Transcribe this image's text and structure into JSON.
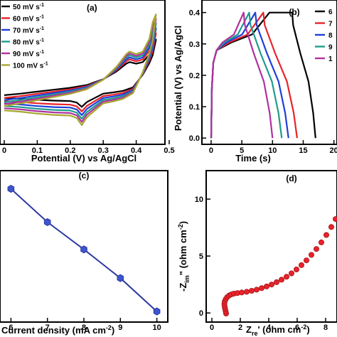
{
  "chart_data": [
    {
      "type": "line",
      "panel_label": "(a)",
      "xlabel": "Potential (V) vs Ag/AgCl",
      "ylabel": "",
      "xlim": [
        0.0,
        0.5
      ],
      "ylim": [
        -1.05,
        1.25
      ],
      "x_ticks": [
        "0",
        "0.1",
        "0.2",
        "0.3",
        "0.4",
        "0.5"
      ],
      "x_tick_values": [
        0.0,
        0.1,
        0.2,
        0.3,
        0.4,
        0.5
      ],
      "legend_position": "top-left",
      "series": [
        {
          "name": "50 mV s",
          "superscript": "-1",
          "color": "#000000",
          "scale": 0.62
        },
        {
          "name": "60 mV s",
          "superscript": "-1",
          "color": "#e8232a",
          "scale": 0.72
        },
        {
          "name": "70 mV s",
          "superscript": "-1",
          "color": "#1f3fd8",
          "scale": 0.8
        },
        {
          "name": "80 mV s",
          "superscript": "-1",
          "color": "#1f9c8c",
          "scale": 0.88
        },
        {
          "name": "90 mV s",
          "superscript": "-1",
          "color": "#b0329e",
          "scale": 0.95
        },
        {
          "name": "100 mV s",
          "superscript": "-1",
          "color": "#a8a830",
          "scale": 1.02
        }
      ],
      "curve_shape": {
        "upper": [
          [
            0.0,
            -0.43
          ],
          [
            0.05,
            -0.39
          ],
          [
            0.1,
            -0.34
          ],
          [
            0.15,
            -0.29
          ],
          [
            0.2,
            -0.24
          ],
          [
            0.25,
            -0.17
          ],
          [
            0.3,
            -0.02
          ],
          [
            0.34,
            0.18
          ],
          [
            0.37,
            0.38
          ],
          [
            0.38,
            0.42
          ],
          [
            0.4,
            0.38
          ],
          [
            0.42,
            0.42
          ],
          [
            0.44,
            0.62
          ],
          [
            0.45,
            0.88
          ],
          [
            0.46,
            1.0
          ]
        ],
        "lower": [
          [
            0.46,
            1.0
          ],
          [
            0.45,
            0.6
          ],
          [
            0.44,
            0.4
          ],
          [
            0.42,
            0.1
          ],
          [
            0.39,
            -0.23
          ],
          [
            0.36,
            -0.32
          ],
          [
            0.33,
            -0.36
          ],
          [
            0.3,
            -0.39
          ],
          [
            0.27,
            -0.52
          ],
          [
            0.25,
            -0.61
          ],
          [
            0.235,
            -0.73
          ],
          [
            0.22,
            -0.62
          ],
          [
            0.2,
            -0.58
          ],
          [
            0.15,
            -0.57
          ],
          [
            0.1,
            -0.55
          ],
          [
            0.05,
            -0.52
          ],
          [
            0.0,
            -0.5
          ]
        ]
      }
    },
    {
      "type": "line",
      "panel_label": "(b)",
      "xlabel": "Time (s)",
      "ylabel": "Potential (V) vs Ag/AgCl",
      "xlim": [
        -1.5,
        20.5
      ],
      "ylim": [
        -0.02,
        0.44
      ],
      "x_ticks": [
        "0",
        "5",
        "10",
        "15",
        "20"
      ],
      "x_tick_values": [
        0,
        5,
        10,
        15,
        20
      ],
      "y_ticks": [
        "0.0",
        "0.1",
        "0.2",
        "0.3",
        "0.4"
      ],
      "y_tick_values": [
        0.0,
        0.1,
        0.2,
        0.3,
        0.4
      ],
      "legend_position": "top-right",
      "legend_labels": [
        "6",
        "7",
        "8",
        "9",
        "1"
      ],
      "series": [
        {
          "name": "6",
          "color": "#000000",
          "t_charge": 9.5,
          "t_flat": 13.2,
          "t_end": 17.0
        },
        {
          "name": "7",
          "color": "#e8232a",
          "t_charge": 8.5,
          "t_flat": 8.5,
          "t_end": 14.0
        },
        {
          "name": "8",
          "color": "#1f3fd8",
          "t_charge": 7.2,
          "t_flat": 7.2,
          "t_end": 12.6
        },
        {
          "name": "9",
          "color": "#1f9c8c",
          "t_charge": 6.2,
          "t_flat": 6.2,
          "t_end": 11.5
        },
        {
          "name": "1",
          "color": "#b0329e",
          "t_charge": 5.3,
          "t_flat": 5.3,
          "t_end": 10.0
        }
      ]
    },
    {
      "type": "line",
      "panel_label": "(c)",
      "xlabel": "Current density (mA cm",
      "xlabel_superscript": "-2",
      "xlabel_close": ")",
      "ylabel": "",
      "xlim": [
        5.7,
        10.3
      ],
      "ylim": [
        0.0,
        1.0
      ],
      "x_ticks": [
        "6",
        "7",
        "8",
        "9",
        "10"
      ],
      "x_tick_values": [
        6,
        7,
        8,
        9,
        10
      ],
      "x": [
        6,
        7,
        8,
        9,
        10
      ],
      "y": [
        0.88,
        0.66,
        0.48,
        0.29,
        0.07
      ],
      "color": "#2e3aa0",
      "marker_color": "#3d55cf"
    },
    {
      "type": "scatter",
      "panel_label": "(d)",
      "xlabel": "Z",
      "xlabel_sub": "re",
      "xlabel_rest": "' (ohm cm",
      "xlabel_superscript": "-2",
      "xlabel_close": ")",
      "ylabel": "-Z",
      "ylabel_sub": "im",
      "ylabel_rest": "\" (ohm cm",
      "ylabel_superscript": "-2",
      "ylabel_close": ")",
      "xlim": [
        -0.4,
        8.8
      ],
      "ylim": [
        -0.8,
        12.5
      ],
      "x_ticks": [
        "0",
        "2",
        "4",
        "6",
        "8"
      ],
      "x_tick_values": [
        0,
        2,
        4,
        6,
        8
      ],
      "y_ticks": [
        "0",
        "5",
        "10"
      ],
      "y_tick_values": [
        0,
        5,
        10
      ],
      "color": "#e8232a",
      "edge_color": "#a3141a",
      "points": [
        [
          1.0,
          -0.05
        ],
        [
          0.97,
          0.15
        ],
        [
          0.93,
          0.35
        ],
        [
          0.9,
          0.55
        ],
        [
          0.88,
          0.78
        ],
        [
          0.9,
          1.0
        ],
        [
          0.97,
          1.2
        ],
        [
          1.07,
          1.38
        ],
        [
          1.2,
          1.52
        ],
        [
          1.35,
          1.62
        ],
        [
          1.55,
          1.7
        ],
        [
          1.8,
          1.75
        ],
        [
          2.1,
          1.8
        ],
        [
          2.45,
          1.86
        ],
        [
          2.8,
          1.95
        ],
        [
          3.15,
          2.05
        ],
        [
          3.5,
          2.18
        ],
        [
          3.85,
          2.33
        ],
        [
          4.2,
          2.5
        ],
        [
          4.55,
          2.7
        ],
        [
          4.9,
          2.92
        ],
        [
          5.25,
          3.18
        ],
        [
          5.6,
          3.48
        ],
        [
          5.95,
          3.82
        ],
        [
          6.3,
          4.2
        ],
        [
          6.65,
          4.62
        ],
        [
          7.0,
          5.1
        ],
        [
          7.35,
          5.62
        ],
        [
          7.7,
          6.2
        ],
        [
          8.05,
          6.85
        ],
        [
          8.4,
          7.55
        ],
        [
          8.7,
          8.25
        ]
      ]
    }
  ]
}
